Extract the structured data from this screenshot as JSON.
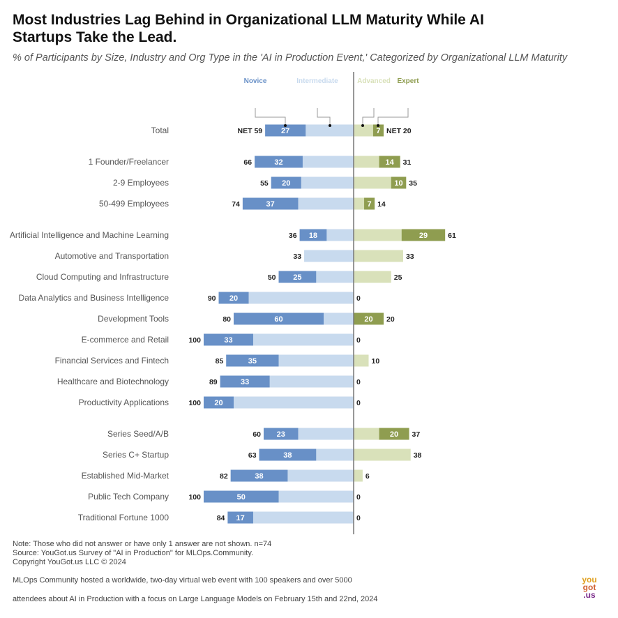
{
  "title": "Most Industries Lag Behind in Organizational LLM Maturity While AI Startups Take the Lead.",
  "subtitle": "% of Participants by Size, Industry and Org Type in the 'AI in Production Event,' Categorized by Organizational LLM Maturity",
  "chart_data": {
    "type": "bar",
    "orientation": "horizontal-diverging-stacked",
    "xlim": [
      -100,
      100
    ],
    "legend": {
      "placement": "top",
      "entries": [
        "Novice",
        "Intermediate",
        "Advanced",
        "Expert"
      ]
    },
    "colors": {
      "Novice": "#6890c7",
      "Intermediate": "#c8daee",
      "Advanced": "#d9e1ba",
      "Expert": "#8f9d50"
    },
    "net_prefix": "NET",
    "categories": [
      "Total",
      "1 Founder/Freelancer",
      "2-9 Employees",
      "50-499 Employees",
      "Artificial Intelligence and Machine Learning",
      "Automotive and Transportation",
      "Cloud Computing and Infrastructure",
      "Data Analytics and Business Intelligence",
      "Development Tools",
      "E-commerce and Retail",
      "Financial Services and Fintech",
      "Healthcare and Biotechnology",
      "Productivity Applications",
      "Series Seed/A/B",
      "Series C+ Startup",
      "Established Mid-Market",
      "Public Tech Company",
      "Traditional Fortune 1000"
    ],
    "groups": [
      0,
      1,
      1,
      1,
      2,
      2,
      2,
      2,
      2,
      2,
      2,
      2,
      2,
      3,
      3,
      3,
      3,
      3
    ],
    "series": [
      {
        "name": "Novice",
        "values": [
          27,
          32,
          20,
          37,
          18,
          0,
          25,
          20,
          60,
          33,
          35,
          33,
          20,
          23,
          38,
          38,
          50,
          17
        ]
      },
      {
        "name": "Intermediate",
        "values": [
          32,
          34,
          35,
          37,
          18,
          33,
          25,
          70,
          20,
          67,
          50,
          56,
          80,
          37,
          25,
          44,
          50,
          67
        ]
      },
      {
        "name": "Advanced",
        "values": [
          13,
          17,
          25,
          7,
          32,
          33,
          25,
          0,
          0,
          0,
          10,
          0,
          0,
          17,
          38,
          6,
          0,
          0
        ]
      },
      {
        "name": "Expert",
        "values": [
          7,
          14,
          10,
          7,
          29,
          0,
          0,
          0,
          20,
          0,
          0,
          0,
          0,
          20,
          0,
          0,
          0,
          0
        ]
      }
    ],
    "left_totals": [
      59,
      66,
      55,
      74,
      36,
      33,
      50,
      90,
      80,
      100,
      85,
      89,
      100,
      60,
      63,
      82,
      100,
      84
    ],
    "right_totals": [
      20,
      31,
      35,
      14,
      61,
      33,
      25,
      0,
      20,
      0,
      10,
      0,
      0,
      37,
      38,
      6,
      0,
      0
    ]
  },
  "notes": [
    "Note: Those who did not answer or have only 1 answer are not shown. n=74",
    "Source: YouGot.us Survey of \"AI in Production\" for MLOps.Community.",
    "Copyright YouGot.us LLC © 2024"
  ],
  "about": [
    "MLOps Community hosted a worldwide, two-day virtual web event with 100 speakers and over 5000",
    "attendees about AI in Production with a focus on Large Language Models on February 15th and 22nd, 2024"
  ],
  "logo": {
    "line1": "you",
    "line2": "got",
    "line3": ".us"
  }
}
